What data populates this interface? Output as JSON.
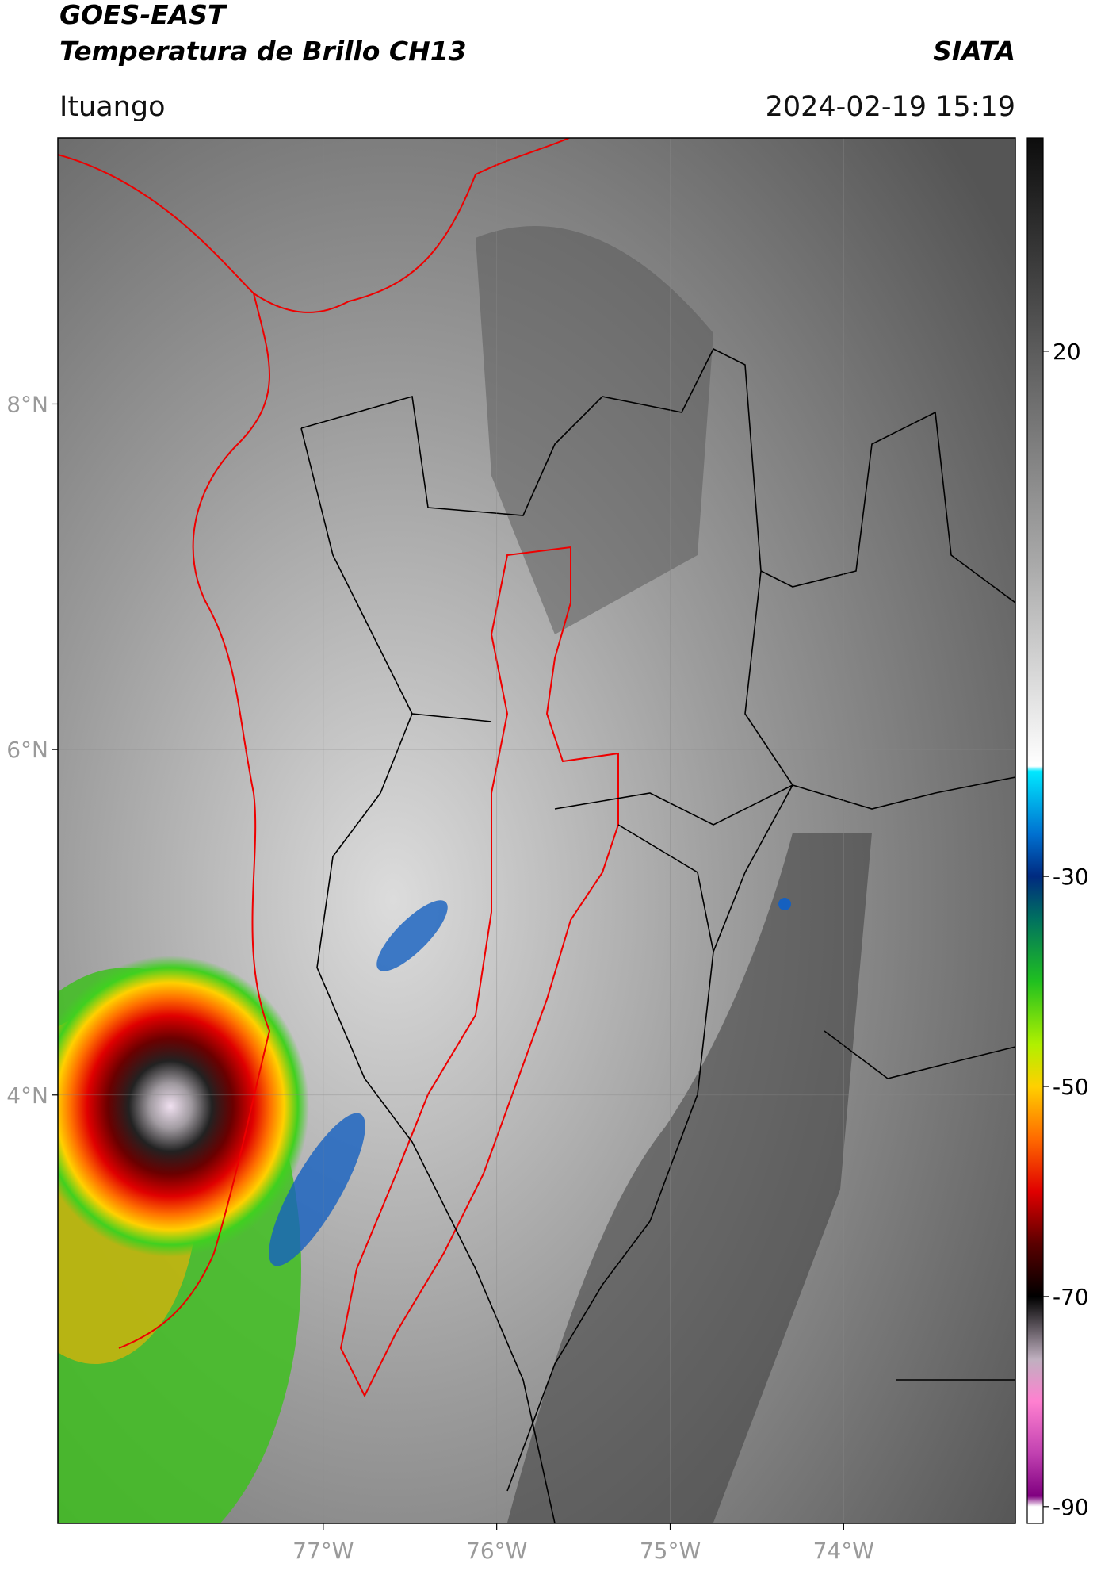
{
  "header": {
    "satellite": "GOES-EAST",
    "product": "Temperatura de Brillo CH13",
    "agency": "SIATA",
    "region": "Ituango",
    "datetime": "2024-02-19 15:19"
  },
  "map": {
    "xlim": [
      -78.53,
      -73.01
    ],
    "ylim": [
      1.52,
      9.54
    ],
    "xticks": [
      {
        "value": -77,
        "label": "77°W"
      },
      {
        "value": -76,
        "label": "76°W"
      },
      {
        "value": -75,
        "label": "75°W"
      },
      {
        "value": -74,
        "label": "74°W"
      }
    ],
    "yticks": [
      {
        "value": 8,
        "label": "8°N"
      },
      {
        "value": 6,
        "label": "6°N"
      },
      {
        "value": 4,
        "label": "4°N"
      }
    ],
    "grid": true
  },
  "colorbar": {
    "lim": [
      -91.6,
      40.3
    ],
    "ticks": [
      20,
      -30,
      -50,
      -70,
      -90
    ],
    "stops": [
      {
        "value": 40.3,
        "color": "#0d0d0d"
      },
      {
        "value": 20,
        "color": "#5c5c5c"
      },
      {
        "value": 0,
        "color": "#a8a8a8"
      },
      {
        "value": -19.5,
        "color": "#ffffff"
      },
      {
        "value": -20,
        "color": "#00e8ff"
      },
      {
        "value": -26,
        "color": "#0070d0"
      },
      {
        "value": -30,
        "color": "#002a80"
      },
      {
        "value": -34,
        "color": "#007060"
      },
      {
        "value": -40,
        "color": "#20c020"
      },
      {
        "value": -46,
        "color": "#b0f000"
      },
      {
        "value": -50,
        "color": "#ffd000"
      },
      {
        "value": -55,
        "color": "#ff6a00"
      },
      {
        "value": -60,
        "color": "#e00000"
      },
      {
        "value": -65,
        "color": "#5a0000"
      },
      {
        "value": -70,
        "color": "#000000"
      },
      {
        "value": -76,
        "color": "#c0b0c0"
      },
      {
        "value": -80,
        "color": "#ff80d0"
      },
      {
        "value": -85,
        "color": "#c040b0"
      },
      {
        "value": -89,
        "color": "#800080"
      },
      {
        "value": -90,
        "color": "#ffffff"
      }
    ]
  }
}
